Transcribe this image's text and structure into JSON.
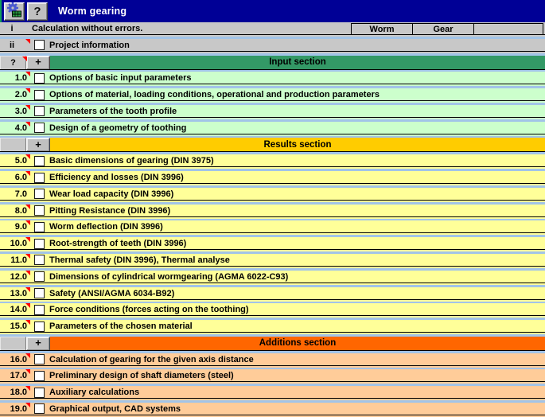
{
  "titlebar": {
    "title": "Worm gearing",
    "help_button": "?"
  },
  "columns": {
    "worm": "Worm",
    "gear": "Gear"
  },
  "rows": [
    {
      "id": "i",
      "type": "status",
      "label": "Calculation without errors.",
      "bg": "gray",
      "flag": false
    },
    {
      "id": "ii",
      "type": "check",
      "label": "Project information",
      "bg": "gray",
      "flag": true
    },
    {
      "id": "?",
      "type": "section",
      "btn": "?",
      "plus": "+",
      "label": "Input section",
      "bar": "green",
      "flag": true
    },
    {
      "id": "1.0",
      "type": "check",
      "label": "Options of basic input parameters",
      "bg": "lightgreen",
      "flag": true
    },
    {
      "id": "2.0",
      "type": "check",
      "label": "Options of material, loading conditions, operational and production parameters",
      "bg": "lightgreen",
      "flag": true
    },
    {
      "id": "3.0",
      "type": "check",
      "label": "Parameters of the tooth profile",
      "bg": "lightgreen",
      "flag": true
    },
    {
      "id": "4.0",
      "type": "check",
      "label": "Design of a geometry of toothing",
      "bg": "lightgreen",
      "flag": true
    },
    {
      "id": "",
      "type": "section",
      "btn": "",
      "plus": "+",
      "label": "Results section",
      "bar": "gold",
      "flag": false
    },
    {
      "id": "5.0",
      "type": "check",
      "label": "Basic dimensions of gearing (DIN 3975)",
      "bg": "yellow",
      "flag": true
    },
    {
      "id": "6.0",
      "type": "check",
      "label": "Efficiency and losses (DIN 3996)",
      "bg": "yellow",
      "flag": true
    },
    {
      "id": "7.0",
      "type": "check",
      "label": "Wear load capacity (DIN 3996)",
      "bg": "yellow",
      "flag": false
    },
    {
      "id": "8.0",
      "type": "check",
      "label": "Pitting Resistance (DIN 3996)",
      "bg": "yellow",
      "flag": true
    },
    {
      "id": "9.0",
      "type": "check",
      "label": "Worm deflection (DIN 3996)",
      "bg": "yellow",
      "flag": true
    },
    {
      "id": "10.0",
      "type": "check",
      "label": "Root-strength of teeth (DIN 3996)",
      "bg": "yellow",
      "flag": true
    },
    {
      "id": "11.0",
      "type": "check",
      "label": "Thermal safety (DIN 3996), Thermal analyse",
      "bg": "yellow",
      "flag": true
    },
    {
      "id": "12.0",
      "type": "check",
      "label": "Dimensions of cylindrical wormgearing (AGMA 6022-C93)",
      "bg": "yellow",
      "flag": true
    },
    {
      "id": "13.0",
      "type": "check",
      "label": "Safety (ANSI/AGMA 6034-B92)",
      "bg": "yellow",
      "flag": true
    },
    {
      "id": "14.0",
      "type": "check",
      "label": "Force conditions (forces acting on the toothing)",
      "bg": "yellow",
      "flag": true
    },
    {
      "id": "15.0",
      "type": "check",
      "label": "Parameters of the chosen material",
      "bg": "yellow",
      "flag": true
    },
    {
      "id": "",
      "type": "section",
      "btn": "",
      "plus": "+",
      "label": "Additions section",
      "bar": "orange",
      "flag": false
    },
    {
      "id": "16.0",
      "type": "check",
      "label": "Calculation of gearing for the given axis distance",
      "bg": "lightorange",
      "flag": true
    },
    {
      "id": "17.0",
      "type": "check",
      "label": "Preliminary design of shaft diameters (steel)",
      "bg": "lightorange",
      "flag": true
    },
    {
      "id": "18.0",
      "type": "check",
      "label": "Auxiliary calculations",
      "bg": "lightorange",
      "flag": true
    },
    {
      "id": "19.0",
      "type": "check",
      "label": "Graphical output, CAD systems",
      "bg": "lightorange",
      "flag": true
    }
  ],
  "colors": {
    "title_bar": "#000096",
    "background": "#A2C4E8",
    "row_gray": "#C8C8C8",
    "row_green": "#CCFFCC",
    "row_yellow": "#FFFF99",
    "row_orange": "#FFCC99",
    "section_green": "#339966",
    "section_gold": "#FFCC00",
    "section_orange": "#FF6600",
    "flag_red": "#FF0000"
  }
}
